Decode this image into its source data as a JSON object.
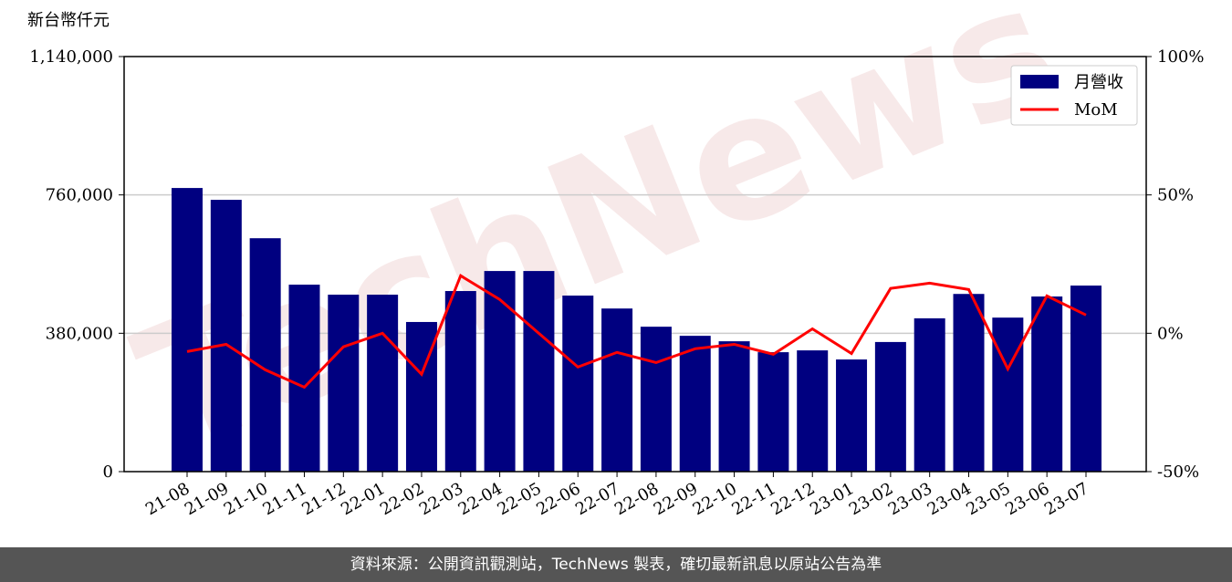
{
  "chart_data": {
    "type": "bar-line",
    "unit_label": "新台幣仟元",
    "watermark": "TechNews",
    "categories": [
      "21-08",
      "21-09",
      "21-10",
      "21-11",
      "21-12",
      "22-01",
      "22-02",
      "22-03",
      "22-04",
      "22-05",
      "22-06",
      "22-07",
      "22-08",
      "22-09",
      "22-10",
      "22-11",
      "22-12",
      "23-01",
      "23-02",
      "23-03",
      "23-04",
      "23-05",
      "23-06",
      "23-07"
    ],
    "series": [
      {
        "name": "月營收",
        "color": "#000080",
        "kind": "bar",
        "values": [
          779000,
          746500,
          641000,
          513500,
          486000,
          486000,
          411000,
          496000,
          551000,
          551000,
          483500,
          448000,
          398000,
          373000,
          358000,
          328000,
          333000,
          308000,
          356000,
          421000,
          488000,
          423000,
          481000,
          511000
        ]
      },
      {
        "name": "MoM",
        "color": "#ff0000",
        "kind": "line",
        "axis": "y2",
        "values": [
          -6.6,
          -4.0,
          -13.2,
          -19.5,
          -4.9,
          0,
          -14.8,
          20.8,
          12.2,
          0,
          -12.2,
          -6.9,
          -10.6,
          -5.6,
          -4.0,
          -7.6,
          1.6,
          -7.3,
          16.2,
          18.1,
          15.8,
          -12.9,
          13.5,
          6.6
        ]
      }
    ],
    "ylim": [
      0,
      1140000
    ],
    "yticks": [
      0,
      {
        "value": 380000,
        "label": "380,000"
      },
      {
        "value": 760000,
        "label": "760,000"
      },
      {
        "value": 1140000,
        "label": "1,140,000"
      }
    ],
    "y2lim": [
      -50,
      100
    ],
    "y2ticks": [
      {
        "value": -50,
        "label": "-50%"
      },
      {
        "value": 0,
        "label": "0%"
      },
      {
        "value": 50,
        "label": "50%"
      },
      {
        "value": 100,
        "label": "100%"
      }
    ],
    "grid": true,
    "legend": "upper right"
  },
  "footer": "資料來源：公開資訊觀測站，TechNews 製表，確切最新訊息以原站公告為準"
}
